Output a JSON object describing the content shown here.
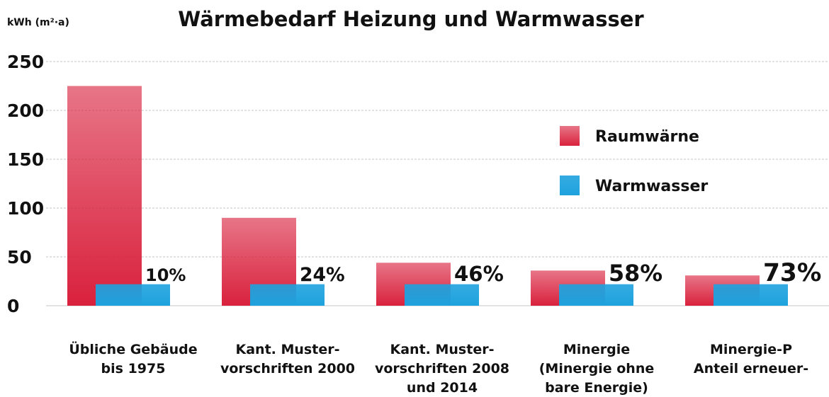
{
  "chart_data": {
    "type": "bar",
    "title": "Wärmebedarf Heizung und Warmwasser",
    "y_label": "kWh (m²·a)",
    "categories": [
      [
        "Übliche Gebäude",
        "bis 1975"
      ],
      [
        "Kant. Muster-",
        "vorschriften 2000"
      ],
      [
        "Kant. Muster-",
        "vorschriften 2008",
        "und 2014"
      ],
      [
        "Minergie",
        "(Minergie ohne",
        "bare Energie)"
      ],
      [
        "Minergie-P",
        "Anteil erneuer-"
      ]
    ],
    "series": [
      {
        "name": "Raumwärne",
        "color": "#d9213d",
        "values": [
          225,
          90,
          44,
          36,
          31
        ]
      },
      {
        "name": "Warmwasser",
        "color": "#1ea2de",
        "values": [
          22,
          22,
          22,
          22,
          22
        ]
      }
    ],
    "annotations": [
      "10%",
      "24%",
      "46%",
      "58%",
      "73%"
    ],
    "ylim": [
      0,
      250
    ],
    "yticks": [
      0,
      50,
      100,
      150,
      200,
      250
    ],
    "grid": true
  }
}
